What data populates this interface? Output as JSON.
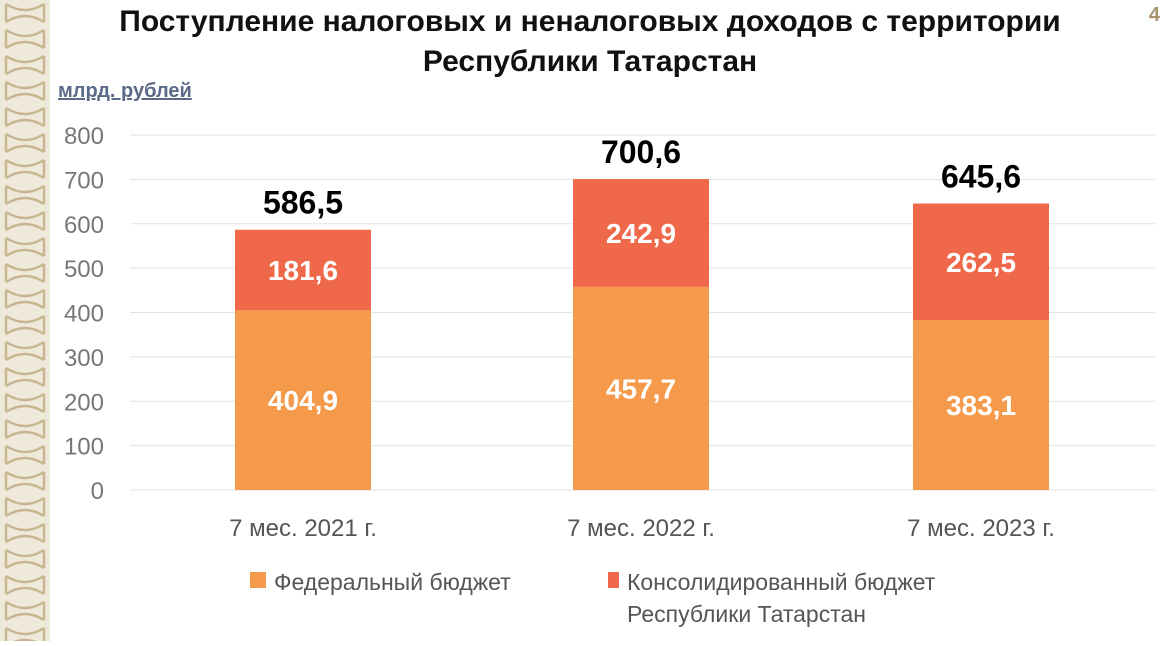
{
  "page": {
    "title": "Поступление налоговых и неналоговых доходов с территории Республики Татарстан",
    "page_number": "4",
    "unit": "млрд. рублей"
  },
  "colors": {
    "federal": "#f59a4a",
    "regional": "#f0684a",
    "gridline": "#e3e3e3",
    "axis_text": "#777777",
    "border": "#efe9dc",
    "border_pattern": "#c8b690"
  },
  "chart_data": {
    "type": "bar",
    "stacked": true,
    "title": "Поступление налоговых и неналоговых доходов с территории Республики Татарстан",
    "ylabel": "млрд. рублей",
    "ylim": [
      0,
      800
    ],
    "yticks": [
      "0",
      "100",
      "200",
      "300",
      "400",
      "500",
      "600",
      "700",
      "800"
    ],
    "grid": true,
    "legend_position": "bottom",
    "categories": [
      "7 мес. 2021 г.",
      "7 мес. 2022 г.",
      "7 мес. 2023 г."
    ],
    "series": [
      {
        "name": "Федеральный бюджет",
        "values": [
          404.9,
          457.7,
          383.1
        ],
        "labels": [
          "404,9",
          "457,7",
          "383,1"
        ]
      },
      {
        "name": "Консолидированный бюджет Республики Татарстан",
        "values": [
          181.6,
          242.9,
          262.5
        ],
        "labels": [
          "181,6",
          "242,9",
          "262,5"
        ]
      }
    ],
    "totals": [
      586.5,
      700.6,
      645.6
    ],
    "total_labels": [
      "586,5",
      "700,6",
      "645,6"
    ]
  }
}
